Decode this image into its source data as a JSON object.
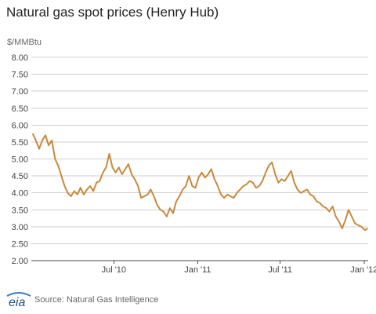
{
  "header": {
    "title": "Natural gas spot prices (Henry Hub)",
    "unit_label": "$/MMBtu"
  },
  "footer": {
    "logo_text": "eia",
    "source": "Source: Natural Gas Intelligence"
  },
  "colors": {
    "line": "#c8893c",
    "grid": "#cfcfcf",
    "axis": "#444444"
  },
  "chart_data": {
    "type": "line",
    "title": "Natural gas spot prices (Henry Hub)",
    "ylabel": "$/MMBtu",
    "xlabel": "",
    "ylim": [
      2.0,
      8.0
    ],
    "yticks": [
      2.0,
      2.5,
      3.0,
      3.5,
      4.0,
      4.5,
      5.0,
      5.5,
      6.0,
      6.5,
      7.0,
      7.5,
      8.0
    ],
    "ytick_labels": [
      "2.00",
      "2.50",
      "3.00",
      "3.50",
      "4.00",
      "4.50",
      "5.00",
      "5.50",
      "6.00",
      "6.50",
      "7.00",
      "7.50",
      "8.00"
    ],
    "xlim": [
      "2010-01-01",
      "2012-01-10"
    ],
    "xticks": [
      {
        "date": "2010-07-01",
        "label": "Jul '10"
      },
      {
        "date": "2011-01-01",
        "label": "Jan '11"
      },
      {
        "date": "2011-07-01",
        "label": "Jul '11"
      },
      {
        "date": "2012-01-01",
        "label": "Jan '12"
      }
    ],
    "grid": "horizontal",
    "series": [
      {
        "color": "#c8893c",
        "x": [
          "2010-01-04",
          "2010-01-11",
          "2010-01-18",
          "2010-01-25",
          "2010-02-01",
          "2010-02-08",
          "2010-02-15",
          "2010-02-22",
          "2010-03-01",
          "2010-03-08",
          "2010-03-15",
          "2010-03-22",
          "2010-03-29",
          "2010-04-05",
          "2010-04-12",
          "2010-04-19",
          "2010-04-26",
          "2010-05-03",
          "2010-05-10",
          "2010-05-17",
          "2010-05-24",
          "2010-05-31",
          "2010-06-07",
          "2010-06-14",
          "2010-06-21",
          "2010-06-28",
          "2010-07-05",
          "2010-07-12",
          "2010-07-19",
          "2010-07-26",
          "2010-08-02",
          "2010-08-09",
          "2010-08-16",
          "2010-08-23",
          "2010-08-30",
          "2010-09-06",
          "2010-09-13",
          "2010-09-20",
          "2010-09-27",
          "2010-10-04",
          "2010-10-11",
          "2010-10-18",
          "2010-10-25",
          "2010-11-01",
          "2010-11-08",
          "2010-11-15",
          "2010-11-22",
          "2010-11-29",
          "2010-12-06",
          "2010-12-13",
          "2010-12-20",
          "2010-12-27",
          "2011-01-03",
          "2011-01-10",
          "2011-01-17",
          "2011-01-24",
          "2011-01-31",
          "2011-02-07",
          "2011-02-14",
          "2011-02-21",
          "2011-02-28",
          "2011-03-07",
          "2011-03-14",
          "2011-03-21",
          "2011-03-28",
          "2011-04-04",
          "2011-04-11",
          "2011-04-18",
          "2011-04-25",
          "2011-05-02",
          "2011-05-09",
          "2011-05-16",
          "2011-05-23",
          "2011-05-30",
          "2011-06-06",
          "2011-06-13",
          "2011-06-20",
          "2011-06-27",
          "2011-07-04",
          "2011-07-11",
          "2011-07-18",
          "2011-07-25",
          "2011-08-01",
          "2011-08-08",
          "2011-08-15",
          "2011-08-22",
          "2011-08-29",
          "2011-09-05",
          "2011-09-12",
          "2011-09-19",
          "2011-09-26",
          "2011-10-03",
          "2011-10-10",
          "2011-10-17",
          "2011-10-24",
          "2011-10-31",
          "2011-11-07",
          "2011-11-14",
          "2011-11-21",
          "2011-11-28",
          "2011-12-05",
          "2011-12-12",
          "2011-12-19",
          "2011-12-26",
          "2012-01-03",
          "2012-01-09"
        ],
        "values": [
          5.75,
          5.55,
          5.3,
          5.55,
          5.7,
          5.4,
          5.55,
          5.0,
          4.8,
          4.5,
          4.2,
          4.0,
          3.9,
          4.05,
          3.95,
          4.15,
          3.95,
          4.1,
          4.2,
          4.05,
          4.3,
          4.35,
          4.6,
          4.75,
          5.15,
          4.75,
          4.6,
          4.75,
          4.55,
          4.7,
          4.85,
          4.55,
          4.4,
          4.2,
          3.85,
          3.9,
          3.95,
          4.1,
          3.9,
          3.65,
          3.5,
          3.45,
          3.3,
          3.55,
          3.4,
          3.75,
          3.9,
          4.1,
          4.2,
          4.5,
          4.2,
          4.15,
          4.45,
          4.6,
          4.45,
          4.55,
          4.7,
          4.4,
          4.2,
          3.95,
          3.85,
          3.95,
          3.9,
          3.85,
          4.0,
          4.1,
          4.2,
          4.25,
          4.35,
          4.3,
          4.15,
          4.2,
          4.35,
          4.6,
          4.8,
          4.9,
          4.55,
          4.3,
          4.4,
          4.35,
          4.5,
          4.65,
          4.3,
          4.1,
          4.0,
          4.05,
          4.1,
          3.95,
          3.9,
          3.75,
          3.7,
          3.6,
          3.55,
          3.45,
          3.6,
          3.3,
          3.15,
          2.95,
          3.2,
          3.5,
          3.3,
          3.1,
          3.05,
          3.0,
          2.9,
          2.95
        ]
      }
    ]
  }
}
